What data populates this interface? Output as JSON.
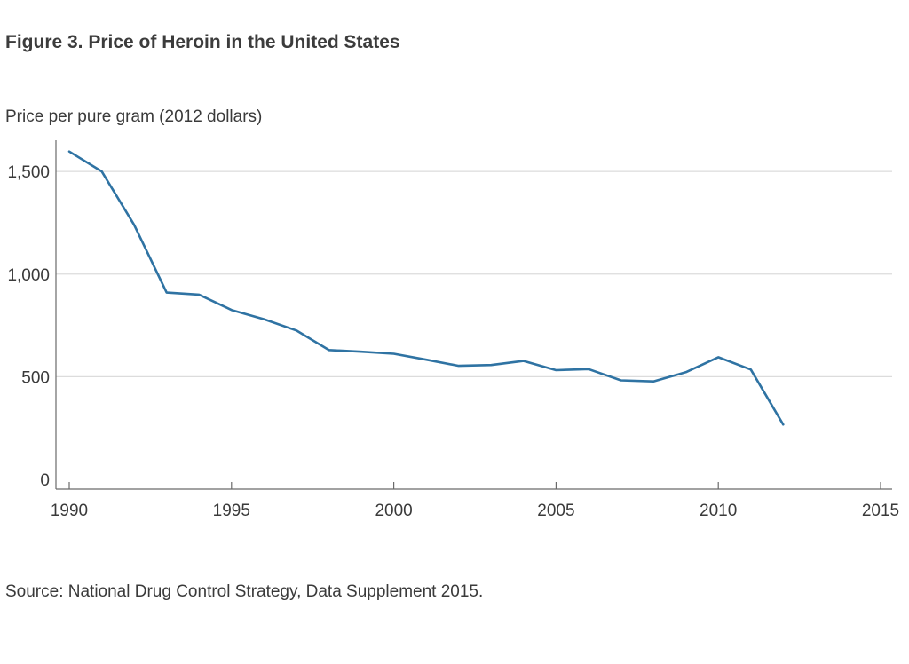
{
  "figure": {
    "title": "Figure 3. Price of Heroin in the United States",
    "ylabel": "Price per pure gram (2012 dollars)",
    "source": "Source: National Drug Control Strategy, Data Supplement 2015."
  },
  "chart_data": {
    "type": "line",
    "title": "Figure 3. Price of Heroin in the United States",
    "xlabel": "",
    "ylabel": "Price per pure gram (2012 dollars)",
    "xlim": [
      1990,
      2015
    ],
    "ylim": [
      0,
      1600
    ],
    "x_ticks": [
      1990,
      1995,
      2000,
      2005,
      2010,
      2015
    ],
    "x_tick_labels": [
      "1990",
      "1995",
      "2000",
      "2005",
      "2010",
      "2015"
    ],
    "y_ticks": [
      0,
      500,
      1000,
      1500
    ],
    "y_tick_labels": [
      "0",
      "500",
      "1,000",
      "1,500"
    ],
    "grid": "horizontal",
    "line_color": "#2f73a3",
    "series": [
      {
        "x": [
          1990,
          1991,
          1992,
          1993,
          1994,
          1995,
          1996,
          1997,
          1998,
          1999,
          2000,
          2001,
          2002,
          2003,
          2004,
          2005,
          2006,
          2007,
          2008,
          2009,
          2010,
          2011,
          2012
        ],
        "values": [
          1597,
          1500,
          1240,
          910,
          900,
          825,
          780,
          725,
          630,
          622,
          612,
          583,
          553,
          557,
          577,
          532,
          537,
          482,
          477,
          522,
          595,
          535,
          267
        ]
      }
    ]
  }
}
